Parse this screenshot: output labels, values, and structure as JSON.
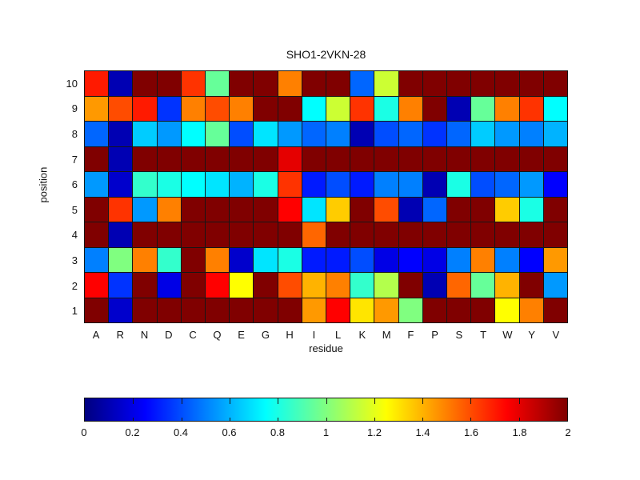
{
  "title": "SHO1-2VKN-28",
  "axes": {
    "x_label": "residue",
    "y_label": "position",
    "x_ticks": [
      "A",
      "R",
      "N",
      "D",
      "C",
      "Q",
      "E",
      "G",
      "H",
      "I",
      "L",
      "K",
      "M",
      "F",
      "P",
      "S",
      "T",
      "W",
      "Y",
      "V"
    ],
    "y_ticks": [
      "10",
      "9",
      "8",
      "7",
      "6",
      "5",
      "4",
      "3",
      "2",
      "1"
    ]
  },
  "colorbar": {
    "min": 0,
    "max": 2,
    "tick_labels": [
      "0",
      "0.2",
      "0.4",
      "0.6",
      "0.8",
      "1",
      "1.2",
      "1.4",
      "1.6",
      "1.8",
      "2"
    ]
  },
  "chart_data": {
    "type": "heatmap",
    "title": "SHO1-2VKN-28",
    "xlabel": "residue",
    "ylabel": "position",
    "categories_x": [
      "A",
      "R",
      "N",
      "D",
      "C",
      "Q",
      "E",
      "G",
      "H",
      "I",
      "L",
      "K",
      "M",
      "F",
      "P",
      "S",
      "T",
      "W",
      "Y",
      "V"
    ],
    "categories_y": [
      10,
      9,
      8,
      7,
      6,
      5,
      4,
      3,
      2,
      1
    ],
    "colormap": "jet",
    "vmin": 0,
    "vmax": 2,
    "legend_position": "bottom-colorbar",
    "grid": true,
    "values": [
      [
        1.7,
        0.1,
        2.0,
        2.0,
        1.65,
        0.95,
        2.0,
        2.0,
        1.5,
        2.0,
        2.0,
        0.45,
        1.15,
        2.0,
        2.0,
        2.0,
        2.0,
        2.0,
        2.0,
        2.0
      ],
      [
        1.45,
        1.6,
        1.7,
        0.35,
        1.5,
        1.6,
        1.5,
        2.0,
        2.0,
        0.75,
        1.15,
        1.65,
        0.8,
        1.5,
        2.0,
        0.1,
        0.95,
        1.5,
        1.65,
        0.75
      ],
      [
        0.45,
        0.1,
        0.65,
        0.55,
        0.75,
        0.95,
        0.4,
        0.7,
        0.55,
        0.45,
        0.5,
        0.1,
        0.4,
        0.45,
        0.35,
        0.45,
        0.65,
        0.55,
        0.5,
        0.6
      ],
      [
        2.0,
        0.1,
        2.0,
        2.0,
        2.0,
        2.0,
        2.0,
        2.0,
        1.8,
        2.0,
        2.0,
        2.0,
        2.0,
        2.0,
        2.0,
        2.0,
        2.0,
        2.0,
        2.0,
        2.0
      ],
      [
        0.55,
        0.15,
        0.85,
        0.8,
        0.75,
        0.7,
        0.6,
        0.8,
        1.65,
        0.3,
        0.4,
        0.3,
        0.5,
        0.5,
        0.1,
        0.8,
        0.4,
        0.45,
        0.55,
        0.25
      ],
      [
        2.0,
        1.65,
        0.55,
        1.5,
        2.0,
        2.0,
        2.0,
        2.0,
        1.75,
        0.7,
        1.35,
        2.0,
        1.6,
        0.1,
        0.45,
        2.0,
        2.0,
        1.35,
        0.8,
        2.0
      ],
      [
        2.0,
        0.1,
        2.0,
        2.0,
        2.0,
        2.0,
        2.0,
        2.0,
        2.0,
        1.55,
        2.0,
        2.0,
        2.0,
        2.0,
        2.0,
        2.0,
        2.0,
        2.0,
        2.0,
        2.0
      ],
      [
        0.5,
        1.0,
        1.5,
        0.85,
        2.0,
        1.5,
        0.15,
        0.7,
        0.8,
        0.3,
        0.3,
        0.4,
        0.2,
        0.25,
        0.2,
        0.5,
        1.5,
        0.5,
        0.25,
        1.45
      ],
      [
        1.75,
        0.35,
        2.0,
        0.2,
        2.0,
        1.75,
        1.25,
        2.0,
        1.6,
        1.4,
        1.5,
        0.85,
        1.1,
        2.0,
        0.1,
        1.55,
        0.95,
        1.4,
        2.0,
        0.55
      ],
      [
        2.0,
        0.15,
        2.0,
        2.0,
        2.0,
        2.0,
        2.0,
        2.0,
        2.0,
        1.45,
        1.75,
        1.3,
        1.45,
        1.0,
        2.0,
        2.0,
        2.0,
        1.25,
        1.5,
        2.0
      ]
    ]
  }
}
